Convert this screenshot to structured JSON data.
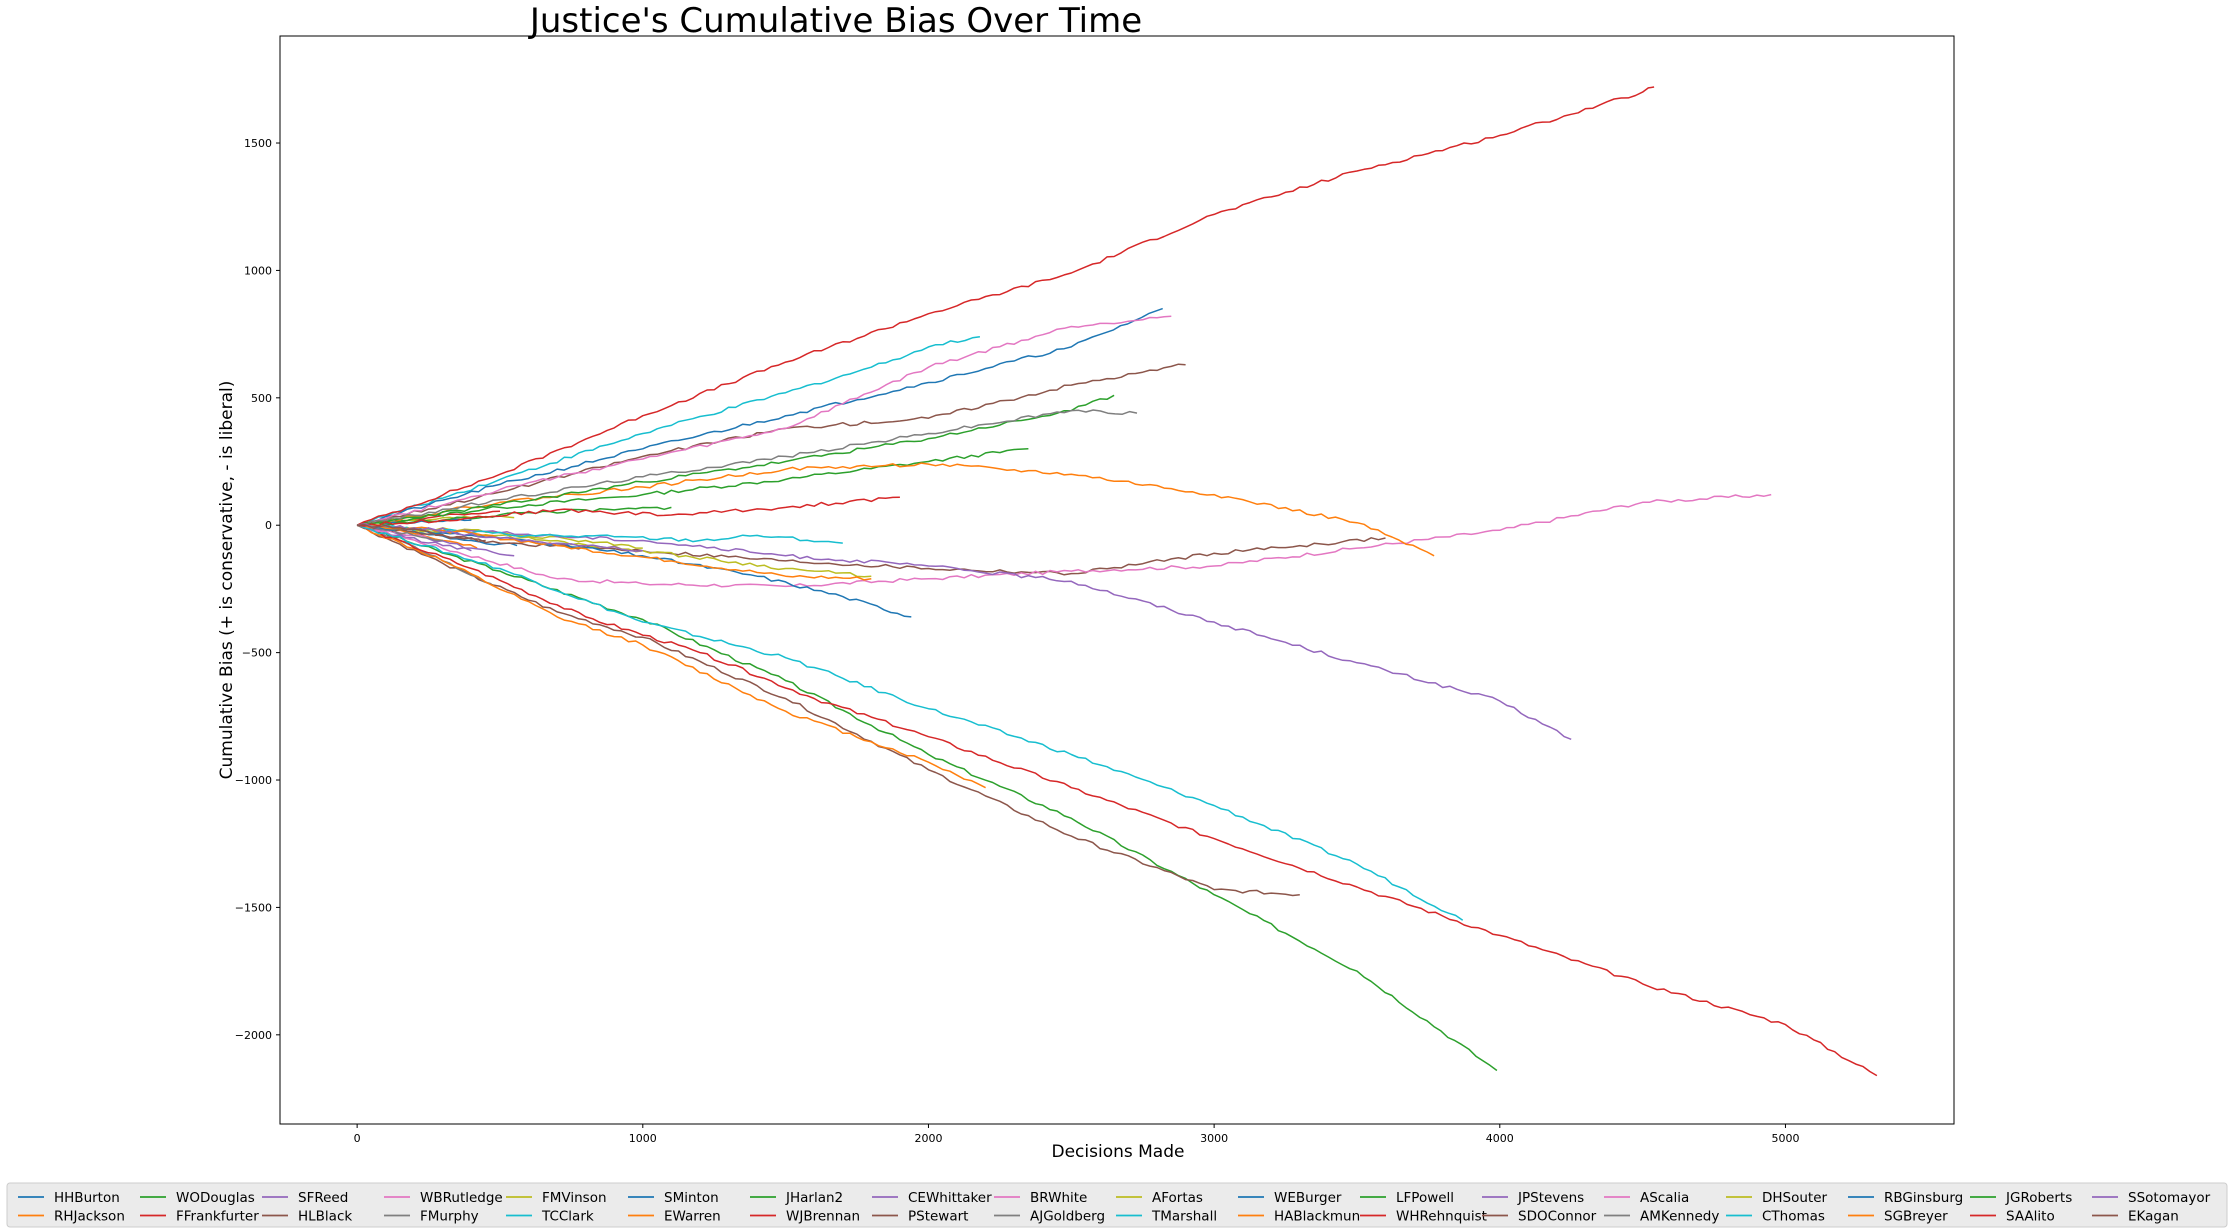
{
  "chart_data": {
    "type": "line",
    "title": "Justice's Cumulative Bias Over Time",
    "xlabel": "Decisions Made",
    "ylabel": "Cumulative Bias (+ is conservative, - is liberal)",
    "xlim": [
      -270,
      5590
    ],
    "ylim": [
      -2350,
      1920
    ],
    "xticks": [
      0,
      1000,
      2000,
      3000,
      4000,
      5000
    ],
    "yticks": [
      -2000,
      -1500,
      -1000,
      -500,
      0,
      500,
      1000,
      1500
    ],
    "xtick_labels": [
      "0",
      "1000",
      "2000",
      "3000",
      "4000",
      "5000"
    ],
    "ytick_labels": [
      "−2000",
      "−1500",
      "−1000",
      "−500",
      "0",
      "500",
      "1000",
      "1500"
    ],
    "grid": false,
    "legend_position": "bottom",
    "series": [
      {
        "name": "HHBurton",
        "color": "#1f77b4",
        "points": [
          [
            0,
            0
          ],
          [
            200,
            -30
          ],
          [
            400,
            -60
          ],
          [
            560,
            -80
          ]
        ]
      },
      {
        "name": "RHJackson",
        "color": "#ff7f0e",
        "points": [
          [
            0,
            0
          ],
          [
            150,
            -20
          ],
          [
            300,
            -60
          ],
          [
            420,
            -90
          ]
        ]
      },
      {
        "name": "WODouglas",
        "color": "#2ca02c",
        "points": [
          [
            0,
            0
          ],
          [
            500,
            -180
          ],
          [
            1000,
            -370
          ],
          [
            1500,
            -610
          ],
          [
            2000,
            -900
          ],
          [
            2500,
            -1150
          ],
          [
            3000,
            -1450
          ],
          [
            3500,
            -1750
          ],
          [
            3990,
            -2140
          ]
        ]
      },
      {
        "name": "FFrankfurter",
        "color": "#d62728",
        "points": [
          [
            0,
            0
          ],
          [
            200,
            25
          ],
          [
            400,
            45
          ],
          [
            500,
            55
          ]
        ]
      },
      {
        "name": "SFReed",
        "color": "#9467bd",
        "points": [
          [
            0,
            0
          ],
          [
            200,
            -40
          ],
          [
            400,
            -90
          ],
          [
            550,
            -120
          ]
        ]
      },
      {
        "name": "HLBlack",
        "color": "#8c564b",
        "points": [
          [
            0,
            0
          ],
          [
            300,
            -150
          ],
          [
            700,
            -340
          ],
          [
            1000,
            -440
          ],
          [
            1500,
            -680
          ],
          [
            2000,
            -960
          ],
          [
            2500,
            -1220
          ],
          [
            3000,
            -1430
          ],
          [
            3300,
            -1450
          ]
        ]
      },
      {
        "name": "WBRutledge",
        "color": "#e377c2",
        "points": [
          [
            0,
            0
          ],
          [
            100,
            -20
          ],
          [
            200,
            -40
          ],
          [
            250,
            -50
          ]
        ]
      },
      {
        "name": "FMurphy",
        "color": "#7f7f7f",
        "points": [
          [
            0,
            0
          ],
          [
            150,
            -60
          ],
          [
            300,
            -140
          ],
          [
            470,
            -230
          ]
        ]
      },
      {
        "name": "FMVinson",
        "color": "#bcbd22",
        "points": [
          [
            0,
            0
          ],
          [
            200,
            20
          ],
          [
            400,
            30
          ],
          [
            550,
            30
          ]
        ]
      },
      {
        "name": "TCClark",
        "color": "#17becf",
        "points": [
          [
            0,
            0
          ],
          [
            500,
            180
          ],
          [
            1000,
            360
          ],
          [
            1500,
            520
          ],
          [
            1800,
            620
          ],
          [
            2000,
            700
          ],
          [
            2180,
            740
          ]
        ]
      },
      {
        "name": "SMinton",
        "color": "#1f77b4",
        "points": [
          [
            0,
            0
          ],
          [
            150,
            10
          ],
          [
            300,
            15
          ],
          [
            400,
            20
          ]
        ]
      },
      {
        "name": "EWarren",
        "color": "#ff7f0e",
        "points": [
          [
            0,
            0
          ],
          [
            300,
            -140
          ],
          [
            700,
            -360
          ],
          [
            1000,
            -470
          ],
          [
            1500,
            -730
          ],
          [
            1800,
            -850
          ],
          [
            2000,
            -930
          ],
          [
            2200,
            -1030
          ]
        ]
      },
      {
        "name": "JHarlan2",
        "color": "#2ca02c",
        "points": [
          [
            0,
            0
          ],
          [
            500,
            70
          ],
          [
            1000,
            120
          ],
          [
            1500,
            180
          ],
          [
            2000,
            250
          ],
          [
            2350,
            300
          ]
        ]
      },
      {
        "name": "WJBrennan",
        "color": "#d62728",
        "points": [
          [
            0,
            0
          ],
          [
            400,
            -170
          ],
          [
            800,
            -360
          ],
          [
            1200,
            -500
          ],
          [
            1600,
            -680
          ],
          [
            2000,
            -830
          ],
          [
            2500,
            -1030
          ],
          [
            3000,
            -1230
          ],
          [
            3500,
            -1420
          ],
          [
            4000,
            -1610
          ],
          [
            4500,
            -1800
          ],
          [
            5000,
            -1960
          ],
          [
            5320,
            -2160
          ]
        ]
      },
      {
        "name": "CEWhittaker",
        "color": "#9467bd",
        "points": [
          [
            0,
            0
          ],
          [
            150,
            -40
          ],
          [
            300,
            -80
          ],
          [
            400,
            -100
          ]
        ]
      },
      {
        "name": "PStewart",
        "color": "#8c564b",
        "points": [
          [
            0,
            0
          ],
          [
            500,
            -70
          ],
          [
            1000,
            -100
          ],
          [
            1500,
            -140
          ],
          [
            2000,
            -170
          ],
          [
            2500,
            -190
          ],
          [
            3000,
            -110
          ],
          [
            3300,
            -80
          ],
          [
            3600,
            -50
          ]
        ]
      },
      {
        "name": "BRWhite",
        "color": "#e377c2",
        "points": [
          [
            0,
            0
          ],
          [
            700,
            -210
          ],
          [
            1000,
            -230
          ],
          [
            1500,
            -240
          ],
          [
            2000,
            -210
          ],
          [
            2500,
            -180
          ],
          [
            3000,
            -160
          ],
          [
            3500,
            -90
          ],
          [
            4000,
            -20
          ],
          [
            4500,
            90
          ],
          [
            4950,
            120
          ]
        ]
      },
      {
        "name": "AJGoldberg",
        "color": "#7f7f7f",
        "points": [
          [
            0,
            0
          ],
          [
            100,
            -20
          ],
          [
            200,
            -40
          ],
          [
            300,
            -60
          ]
        ]
      },
      {
        "name": "AFortas",
        "color": "#bcbd22",
        "points": [
          [
            0,
            0
          ],
          [
            200,
            -10
          ],
          [
            500,
            -30
          ],
          [
            800,
            -60
          ],
          [
            1000,
            -90
          ]
        ]
      },
      {
        "name": "TMarshall",
        "color": "#17becf",
        "points": [
          [
            0,
            0
          ],
          [
            500,
            -170
          ],
          [
            1000,
            -380
          ],
          [
            1500,
            -520
          ],
          [
            2000,
            -720
          ],
          [
            2500,
            -900
          ],
          [
            3000,
            -1100
          ],
          [
            3500,
            -1330
          ],
          [
            3870,
            -1550
          ]
        ]
      },
      {
        "name": "WEBurger",
        "color": "#1f77b4",
        "points": [
          [
            0,
            0
          ],
          [
            500,
            160
          ],
          [
            1000,
            300
          ],
          [
            1500,
            430
          ],
          [
            2000,
            560
          ],
          [
            2500,
            700
          ],
          [
            2820,
            850
          ]
        ]
      },
      {
        "name": "HABlackmun",
        "color": "#ff7f0e",
        "points": [
          [
            0,
            0
          ],
          [
            500,
            90
          ],
          [
            1000,
            150
          ],
          [
            1500,
            220
          ],
          [
            2000,
            240
          ],
          [
            2500,
            200
          ],
          [
            3000,
            120
          ],
          [
            3500,
            10
          ],
          [
            3770,
            -120
          ]
        ]
      },
      {
        "name": "LFPowell",
        "color": "#2ca02c",
        "points": [
          [
            0,
            0
          ],
          [
            500,
            80
          ],
          [
            1000,
            170
          ],
          [
            1500,
            250
          ],
          [
            2000,
            340
          ],
          [
            2500,
            450
          ],
          [
            2650,
            510
          ]
        ]
      },
      {
        "name": "WHRehnquist",
        "color": "#d62728",
        "points": [
          [
            0,
            0
          ],
          [
            500,
            200
          ],
          [
            1000,
            430
          ],
          [
            1500,
            640
          ],
          [
            2000,
            830
          ],
          [
            2500,
            990
          ],
          [
            3000,
            1220
          ],
          [
            3500,
            1390
          ],
          [
            4000,
            1530
          ],
          [
            4500,
            1700
          ],
          [
            4540,
            1720
          ]
        ]
      },
      {
        "name": "JPStevens",
        "color": "#9467bd",
        "points": [
          [
            0,
            0
          ],
          [
            500,
            -30
          ],
          [
            1000,
            -60
          ],
          [
            1500,
            -120
          ],
          [
            2000,
            -160
          ],
          [
            2500,
            -220
          ],
          [
            3000,
            -380
          ],
          [
            3500,
            -540
          ],
          [
            4000,
            -690
          ],
          [
            4250,
            -840
          ]
        ]
      },
      {
        "name": "SDOConnor",
        "color": "#8c564b",
        "points": [
          [
            0,
            0
          ],
          [
            500,
            130
          ],
          [
            1000,
            270
          ],
          [
            1500,
            380
          ],
          [
            2000,
            420
          ],
          [
            2500,
            550
          ],
          [
            2900,
            630
          ]
        ]
      },
      {
        "name": "AScalia",
        "color": "#e377c2",
        "points": [
          [
            0,
            0
          ],
          [
            500,
            140
          ],
          [
            1000,
            260
          ],
          [
            1500,
            380
          ],
          [
            2000,
            620
          ],
          [
            2500,
            780
          ],
          [
            2850,
            820
          ]
        ]
      },
      {
        "name": "AMKennedy",
        "color": "#7f7f7f",
        "points": [
          [
            0,
            0
          ],
          [
            500,
            100
          ],
          [
            1000,
            190
          ],
          [
            1500,
            270
          ],
          [
            2000,
            360
          ],
          [
            2500,
            450
          ],
          [
            2730,
            440
          ]
        ]
      },
      {
        "name": "DHSouter",
        "color": "#bcbd22",
        "points": [
          [
            0,
            0
          ],
          [
            500,
            -40
          ],
          [
            1000,
            -100
          ],
          [
            1500,
            -170
          ],
          [
            1800,
            -200
          ]
        ]
      },
      {
        "name": "CThomas",
        "color": "#17becf",
        "points": [
          [
            0,
            0
          ],
          [
            300,
            -20
          ],
          [
            600,
            -40
          ],
          [
            900,
            -45
          ],
          [
            1200,
            -60
          ],
          [
            1400,
            -40
          ],
          [
            1700,
            -70
          ]
        ]
      },
      {
        "name": "RBGinsburg",
        "color": "#1f77b4",
        "points": [
          [
            0,
            0
          ],
          [
            300,
            -30
          ],
          [
            600,
            -60
          ],
          [
            1000,
            -120
          ],
          [
            1400,
            -200
          ],
          [
            1700,
            -280
          ],
          [
            1940,
            -360
          ]
        ]
      },
      {
        "name": "SGBreyer",
        "color": "#ff7f0e",
        "points": [
          [
            0,
            0
          ],
          [
            300,
            -20
          ],
          [
            700,
            -80
          ],
          [
            1100,
            -140
          ],
          [
            1500,
            -200
          ],
          [
            1800,
            -210
          ]
        ]
      },
      {
        "name": "JGRoberts",
        "color": "#2ca02c",
        "points": [
          [
            0,
            0
          ],
          [
            300,
            20
          ],
          [
            600,
            50
          ],
          [
            900,
            60
          ],
          [
            1100,
            70
          ]
        ]
      },
      {
        "name": "SAAlito",
        "color": "#d62728",
        "points": [
          [
            0,
            0
          ],
          [
            300,
            20
          ],
          [
            700,
            60
          ],
          [
            1100,
            40
          ],
          [
            1500,
            70
          ],
          [
            1900,
            110
          ]
        ]
      },
      {
        "name": "SSotomayor",
        "color": "#9467bd",
        "points": [
          [
            0,
            0
          ],
          [
            200,
            -10
          ],
          [
            500,
            -50
          ],
          [
            800,
            -80
          ],
          [
            1000,
            -100
          ]
        ]
      },
      {
        "name": "EKagan",
        "color": "#8c564b",
        "points": [
          [
            0,
            0
          ],
          [
            150,
            -10
          ],
          [
            300,
            -40
          ],
          [
            450,
            -60
          ]
        ]
      }
    ]
  }
}
